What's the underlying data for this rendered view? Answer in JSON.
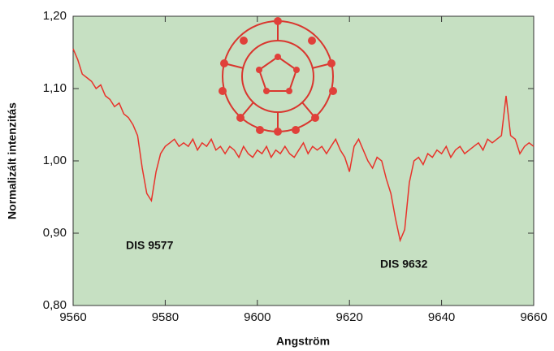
{
  "chart_data": {
    "type": "line",
    "xlabel": "Angström",
    "ylabel": "Normalizált intenzitás",
    "annotations": [
      "DIS 9577",
      "DIS 9632"
    ],
    "xlim": [
      9560,
      9660
    ],
    "xticks": [
      9560,
      9580,
      9600,
      9620,
      9640,
      9660
    ],
    "ylim": [
      0.8,
      1.2
    ],
    "yticks": [
      {
        "value": 0.8,
        "label": "0,80"
      },
      {
        "value": 0.9,
        "label": "0,90"
      },
      {
        "value": 1.0,
        "label": "1,00"
      },
      {
        "value": 1.1,
        "label": "1,10"
      },
      {
        "value": 1.2,
        "label": "1,20"
      }
    ],
    "background": "#c6e0c2",
    "series": [
      {
        "color": "#e8322a",
        "x": [
          9560,
          9561,
          9562,
          9563,
          9564,
          9565,
          9566,
          9567,
          9568,
          9569,
          9570,
          9571,
          9572,
          9573,
          9574,
          9575,
          9576,
          9577,
          9578,
          9579,
          9580,
          9581,
          9582,
          9583,
          9584,
          9585,
          9586,
          9587,
          9588,
          9589,
          9590,
          9591,
          9592,
          9593,
          9594,
          9595,
          9596,
          9597,
          9598,
          9599,
          9600,
          9601,
          9602,
          9603,
          9604,
          9605,
          9606,
          9607,
          9608,
          9609,
          9610,
          9611,
          9612,
          9613,
          9614,
          9615,
          9616,
          9617,
          9618,
          9619,
          9620,
          9621,
          9622,
          9623,
          9624,
          9625,
          9626,
          9627,
          9628,
          9629,
          9630,
          9631,
          9632,
          9633,
          9634,
          9635,
          9636,
          9637,
          9638,
          9639,
          9640,
          9641,
          9642,
          9643,
          9644,
          9645,
          9646,
          9647,
          9648,
          9649,
          9650,
          9651,
          9652,
          9653,
          9654,
          9655,
          9656,
          9657,
          9658,
          9659,
          9660
        ],
        "values": [
          1.155,
          1.14,
          1.12,
          1.115,
          1.11,
          1.1,
          1.105,
          1.09,
          1.085,
          1.075,
          1.08,
          1.065,
          1.06,
          1.05,
          1.035,
          0.99,
          0.955,
          0.945,
          0.985,
          1.01,
          1.02,
          1.025,
          1.03,
          1.02,
          1.025,
          1.02,
          1.03,
          1.015,
          1.025,
          1.02,
          1.03,
          1.015,
          1.02,
          1.01,
          1.02,
          1.015,
          1.005,
          1.02,
          1.01,
          1.005,
          1.015,
          1.01,
          1.02,
          1.005,
          1.015,
          1.01,
          1.02,
          1.01,
          1.005,
          1.015,
          1.025,
          1.01,
          1.02,
          1.015,
          1.02,
          1.01,
          1.02,
          1.03,
          1.015,
          1.005,
          0.985,
          1.02,
          1.03,
          1.015,
          1.0,
          0.99,
          1.005,
          1.0,
          0.975,
          0.955,
          0.92,
          0.89,
          0.905,
          0.97,
          1.0,
          1.005,
          0.995,
          1.01,
          1.005,
          1.015,
          1.01,
          1.02,
          1.005,
          1.015,
          1.02,
          1.01,
          1.015,
          1.02,
          1.025,
          1.015,
          1.03,
          1.025,
          1.03,
          1.035,
          1.09,
          1.035,
          1.03,
          1.01,
          1.02,
          1.025,
          1.02
        ]
      }
    ]
  }
}
